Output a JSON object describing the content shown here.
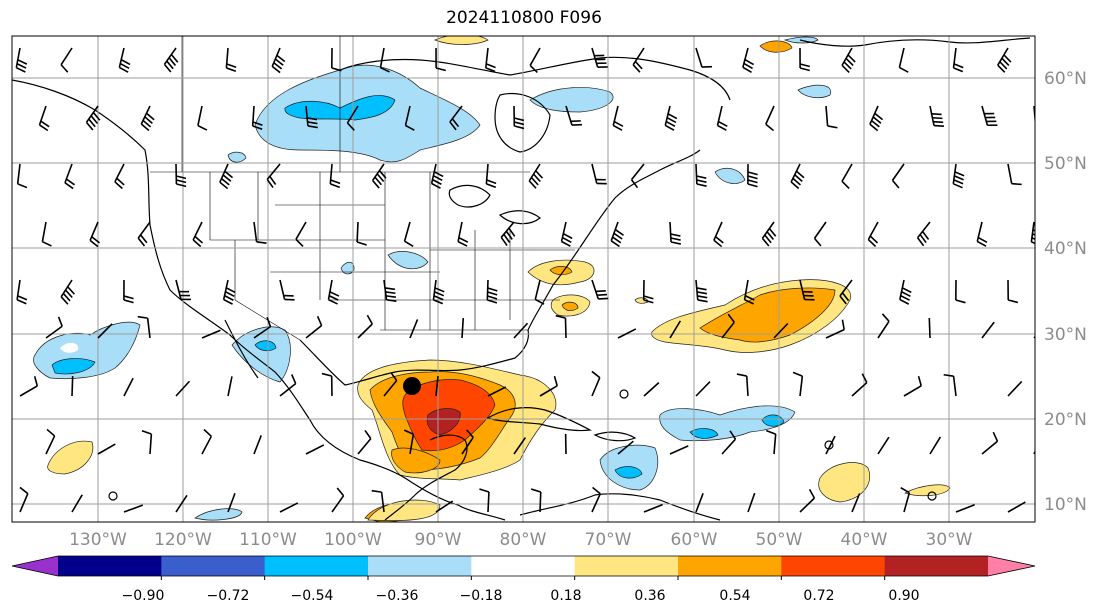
{
  "title": "2024110800 F096",
  "map": {
    "lon_labels": [
      "130°W",
      "120°W",
      "110°W",
      "100°W",
      "90°W",
      "80°W",
      "70°W",
      "60°W",
      "50°W",
      "40°W",
      "30°W"
    ],
    "lat_labels": [
      "60°N",
      "50°N",
      "40°N",
      "30°N",
      "20°N",
      "10°N"
    ],
    "projection": "plate-carree",
    "extent": {
      "lon_min": -135,
      "lon_max": -15,
      "lat_min": 8,
      "lat_max": 65
    }
  },
  "colorbar": {
    "ticks": [
      "−0.90",
      "−0.72",
      "−0.54",
      "−0.36",
      "−0.18",
      "0.18",
      "0.36",
      "0.54",
      "0.72",
      "0.90"
    ],
    "colors": [
      "#9932cc",
      "#00008b",
      "#3a5fcd",
      "#00bfff",
      "#a9def9",
      "#ffffff",
      "#ffe680",
      "#ffa500",
      "#ff4500",
      "#b22222",
      "#ff7fa8"
    ],
    "extend": "both"
  },
  "colors": {
    "light_blue": "#a9def9",
    "blue": "#00bfff",
    "yellow": "#ffe680",
    "orange": "#ffa500",
    "red": "#ff4500",
    "dark_red": "#b22222",
    "grid": "#9e9e9e",
    "label_gray": "#8c8c8c"
  }
}
